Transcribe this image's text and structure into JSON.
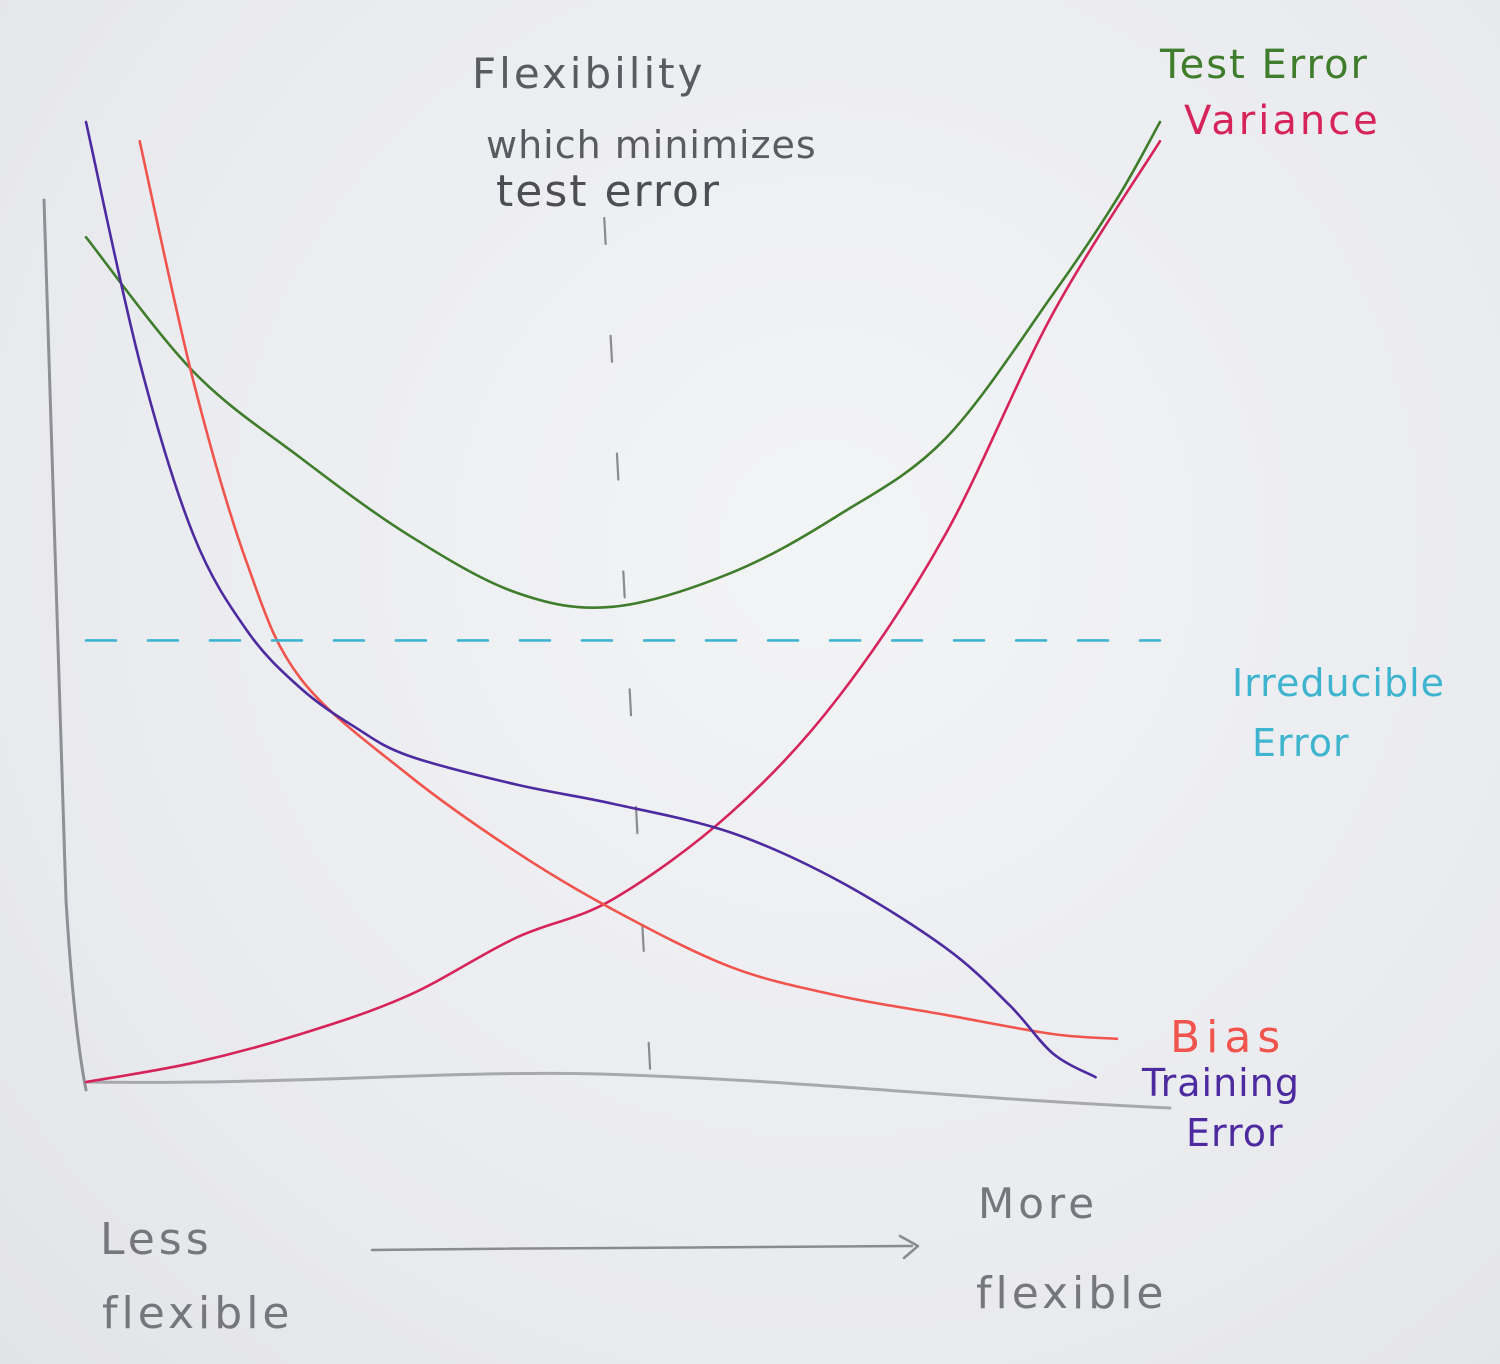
{
  "chart_data": {
    "type": "line",
    "title": "",
    "xlabel_left": [
      "Less",
      "flexible"
    ],
    "xlabel_right": [
      "More",
      "flexible"
    ],
    "ylabel": "",
    "x_range": [
      0,
      100
    ],
    "y_range": [
      0,
      100
    ],
    "grid": false,
    "legend": "labels at right end of each curve",
    "annotation": [
      "Flexibility",
      "which minimizes",
      "test error"
    ],
    "optimum_x": 49,
    "series": [
      {
        "name_lines": [
          "Test Error"
        ],
        "color": "#3f7d2c",
        "points": [
          [
            0,
            88
          ],
          [
            10,
            74
          ],
          [
            20,
            65
          ],
          [
            30,
            57
          ],
          [
            40,
            51
          ],
          [
            49,
            49.5
          ],
          [
            60,
            53
          ],
          [
            70,
            59
          ],
          [
            80,
            67
          ],
          [
            90,
            82
          ],
          [
            96,
            92
          ],
          [
            100,
            100
          ]
        ]
      },
      {
        "name_lines": [
          "Variance"
        ],
        "color": "#d6245a",
        "points": [
          [
            0,
            0
          ],
          [
            10,
            2
          ],
          [
            20,
            5
          ],
          [
            30,
            9
          ],
          [
            40,
            15
          ],
          [
            49,
            19
          ],
          [
            60,
            28
          ],
          [
            70,
            40
          ],
          [
            80,
            57
          ],
          [
            90,
            80
          ],
          [
            100,
            98
          ]
        ]
      },
      {
        "name_lines": [
          "Bias"
        ],
        "color": "#f0544d",
        "points": [
          [
            5,
            98
          ],
          [
            10,
            73
          ],
          [
            15,
            54
          ],
          [
            20,
            42
          ],
          [
            30,
            32
          ],
          [
            40,
            24
          ],
          [
            49,
            18
          ],
          [
            60,
            12
          ],
          [
            70,
            9
          ],
          [
            80,
            7
          ],
          [
            90,
            5
          ],
          [
            96,
            4.5
          ]
        ]
      },
      {
        "name_lines": [
          "Training",
          "Error"
        ],
        "color": "#4d2aa0",
        "points": [
          [
            0,
            100
          ],
          [
            5,
            75
          ],
          [
            10,
            57
          ],
          [
            15,
            47
          ],
          [
            20,
            41
          ],
          [
            25,
            37
          ],
          [
            30,
            34
          ],
          [
            40,
            31
          ],
          [
            49,
            29
          ],
          [
            60,
            26
          ],
          [
            70,
            21
          ],
          [
            80,
            14
          ],
          [
            86,
            8
          ],
          [
            90,
            3
          ],
          [
            94,
            0.5
          ]
        ]
      },
      {
        "name_lines": [
          "Irreducible",
          "Error"
        ],
        "color": "#3fb4cf",
        "dashed": true,
        "points": [
          [
            0,
            46
          ],
          [
            100,
            46
          ]
        ]
      }
    ]
  }
}
